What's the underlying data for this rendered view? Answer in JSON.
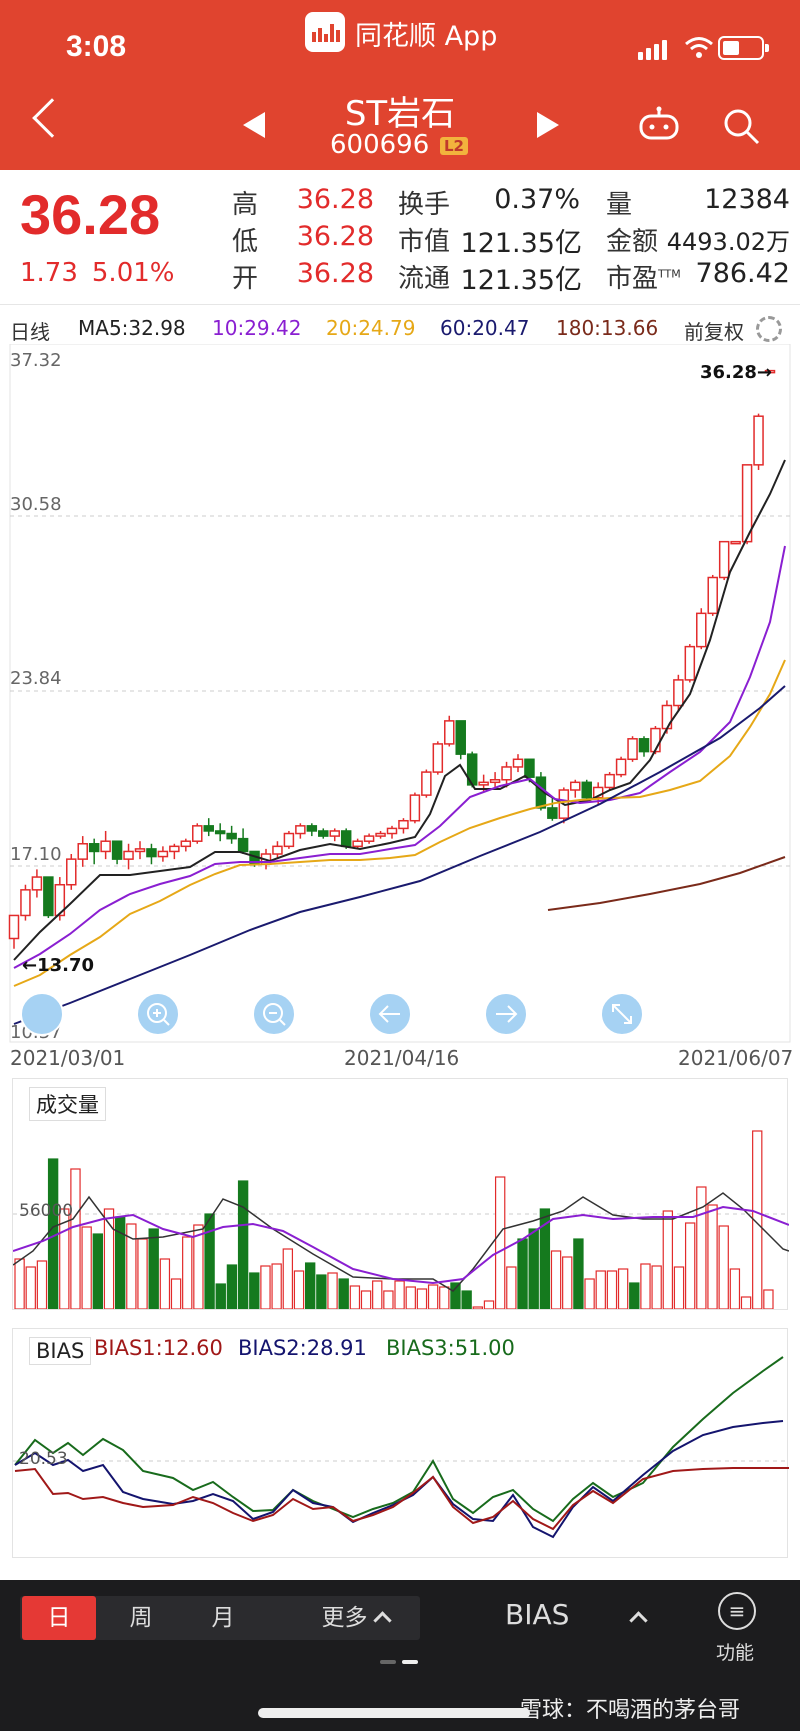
{
  "status_bar": {
    "time": "3:08",
    "app_name": "同花顺 App"
  },
  "nav": {
    "stock_name": "ST岩石",
    "stock_code": "600696",
    "level_badge": "L2"
  },
  "quote": {
    "price": "36.28",
    "change": "1.73",
    "change_pct": "5.01%",
    "fields": [
      {
        "label": "高",
        "value": "36.28",
        "color": "red"
      },
      {
        "label": "低",
        "value": "36.28",
        "color": "red"
      },
      {
        "label": "开",
        "value": "36.28",
        "color": "red"
      },
      {
        "label": "换手",
        "value": "0.37%"
      },
      {
        "label": "市值",
        "value": "121.35亿"
      },
      {
        "label": "流通",
        "value": "121.35亿"
      },
      {
        "label": "量",
        "value": "12384"
      },
      {
        "label": "金额",
        "value": "4493.02万"
      },
      {
        "label": "市盈",
        "sup": "TTM",
        "value": "786.42"
      }
    ]
  },
  "ma_row": {
    "period": "日线",
    "ma5": "MA5:32.98",
    "ma10": "10:29.42",
    "ma20": "20:24.79",
    "ma60": "60:20.47",
    "ma180": "180:13.66",
    "adjust": "前复权",
    "colors": {
      "ma5": "#222222",
      "ma10": "#8a1fd1",
      "ma20": "#e6a817",
      "ma60": "#1a1a6e",
      "ma180": "#7a2a1a"
    }
  },
  "chart": {
    "y_labels": [
      "37.32",
      "30.58",
      "23.84",
      "17.10",
      "10.37"
    ],
    "last_price_label": "36.28→",
    "low_marker": "←13.70",
    "dates": [
      "2021/03/01",
      "2021/04/16",
      "2021/06/07"
    ]
  },
  "volume_panel": {
    "title": "成交量",
    "level_label": "56000"
  },
  "bias_panel": {
    "title": "BIAS",
    "bias1": "BIAS1:12.60",
    "bias2": "BIAS2:28.91",
    "bias3": "BIAS3:51.00",
    "level_label": "20.53",
    "colors": {
      "bias1": "#a01818",
      "bias2": "#14146e",
      "bias3": "#186b1c"
    }
  },
  "bottom_bar": {
    "periods": [
      "日",
      "周",
      "月"
    ],
    "more": "更多",
    "indicator": "BIAS",
    "function": "功能",
    "function_icon": "≡",
    "watermark": "雪球：不喝酒的茅台哥"
  },
  "colors": {
    "header": "#e0442f",
    "up": "#e22b2b",
    "down": "#157a1e"
  },
  "chart_data": {
    "type": "candlestick",
    "x": [
      "2021/03/01",
      "2021/04/16",
      "2021/06/07"
    ],
    "ylim": [
      10.37,
      37.32
    ],
    "y_ticks": [
      37.32,
      30.58,
      23.84,
      17.1,
      10.37
    ],
    "candles": [
      [
        14.1,
        15.0,
        13.7,
        15.0
      ],
      [
        15.0,
        16.2,
        14.8,
        16.0
      ],
      [
        16.0,
        16.8,
        15.7,
        16.5
      ],
      [
        16.5,
        16.5,
        14.9,
        15.0
      ],
      [
        15.0,
        16.5,
        14.8,
        16.2
      ],
      [
        16.2,
        17.4,
        16.0,
        17.2
      ],
      [
        17.2,
        18.1,
        16.9,
        17.8
      ],
      [
        17.8,
        18.0,
        17.0,
        17.5
      ],
      [
        17.5,
        18.3,
        17.2,
        17.9
      ],
      [
        17.9,
        17.9,
        17.0,
        17.2
      ],
      [
        17.2,
        17.8,
        16.8,
        17.5
      ],
      [
        17.5,
        17.9,
        17.2,
        17.6
      ],
      [
        17.6,
        17.8,
        17.0,
        17.3
      ],
      [
        17.3,
        17.7,
        17.1,
        17.5
      ],
      [
        17.5,
        17.8,
        17.2,
        17.7
      ],
      [
        17.7,
        18.0,
        17.5,
        17.9
      ],
      [
        17.9,
        18.6,
        17.8,
        18.5
      ],
      [
        18.5,
        18.8,
        18.1,
        18.3
      ],
      [
        18.3,
        18.6,
        17.9,
        18.2
      ],
      [
        18.2,
        18.5,
        17.8,
        18.0
      ],
      [
        18.0,
        18.4,
        17.4,
        17.5
      ],
      [
        17.5,
        17.5,
        16.9,
        17.0
      ],
      [
        17.0,
        17.6,
        16.8,
        17.4
      ],
      [
        17.4,
        17.9,
        17.2,
        17.7
      ],
      [
        17.7,
        18.3,
        17.6,
        18.2
      ],
      [
        18.2,
        18.6,
        18.0,
        18.5
      ],
      [
        18.5,
        18.6,
        18.1,
        18.3
      ],
      [
        18.3,
        18.4,
        18.0,
        18.1
      ],
      [
        18.1,
        18.4,
        17.9,
        18.3
      ],
      [
        18.3,
        18.4,
        17.6,
        17.7
      ],
      [
        17.7,
        18.0,
        17.6,
        17.9
      ],
      [
        17.9,
        18.2,
        17.8,
        18.1
      ],
      [
        18.1,
        18.3,
        18.0,
        18.2
      ],
      [
        18.2,
        18.5,
        18.0,
        18.4
      ],
      [
        18.4,
        18.8,
        18.2,
        18.7
      ],
      [
        18.7,
        19.8,
        18.6,
        19.7
      ],
      [
        19.7,
        20.7,
        19.6,
        20.6
      ],
      [
        20.6,
        21.8,
        20.5,
        21.7
      ],
      [
        21.7,
        22.8,
        21.6,
        22.6
      ],
      [
        22.6,
        22.6,
        21.1,
        21.3
      ],
      [
        21.3,
        21.4,
        20.0,
        20.1
      ],
      [
        20.1,
        20.5,
        19.8,
        20.2
      ],
      [
        20.2,
        20.6,
        19.9,
        20.3
      ],
      [
        20.3,
        21.0,
        20.0,
        20.8
      ],
      [
        20.8,
        21.3,
        20.6,
        21.1
      ],
      [
        21.1,
        21.1,
        20.2,
        20.4
      ],
      [
        20.4,
        20.6,
        19.1,
        19.2
      ],
      [
        19.2,
        19.6,
        18.7,
        18.8
      ],
      [
        18.8,
        20.0,
        18.6,
        19.9
      ],
      [
        19.9,
        20.3,
        19.6,
        20.2
      ],
      [
        20.2,
        20.3,
        19.4,
        19.6
      ],
      [
        19.6,
        20.2,
        19.3,
        20.0
      ],
      [
        20.0,
        20.6,
        19.9,
        20.5
      ],
      [
        20.5,
        21.2,
        20.4,
        21.1
      ],
      [
        21.1,
        22.0,
        21.0,
        21.9
      ],
      [
        21.9,
        22.0,
        21.2,
        21.4
      ],
      [
        21.4,
        22.4,
        21.3,
        22.3
      ],
      [
        22.3,
        23.4,
        22.1,
        23.2
      ],
      [
        23.2,
        24.4,
        23.0,
        24.2
      ],
      [
        24.2,
        25.6,
        24.1,
        25.5
      ],
      [
        25.5,
        27.0,
        25.4,
        26.8
      ],
      [
        26.8,
        28.3,
        26.7,
        28.2
      ],
      [
        28.2,
        29.6,
        28.1,
        29.6
      ],
      [
        29.6,
        29.6,
        29.6,
        29.6
      ],
      [
        29.6,
        32.6,
        29.5,
        32.6
      ],
      [
        32.6,
        34.6,
        32.4,
        34.5
      ],
      [
        36.28,
        36.28,
        36.28,
        36.28
      ]
    ],
    "ma_series": [
      {
        "name": "MA5",
        "value": 32.98
      },
      {
        "name": "10",
        "value": 29.42
      },
      {
        "name": "20",
        "value": 24.79
      },
      {
        "name": "60",
        "value": 20.47
      },
      {
        "name": "180",
        "value": 13.66
      }
    ]
  }
}
